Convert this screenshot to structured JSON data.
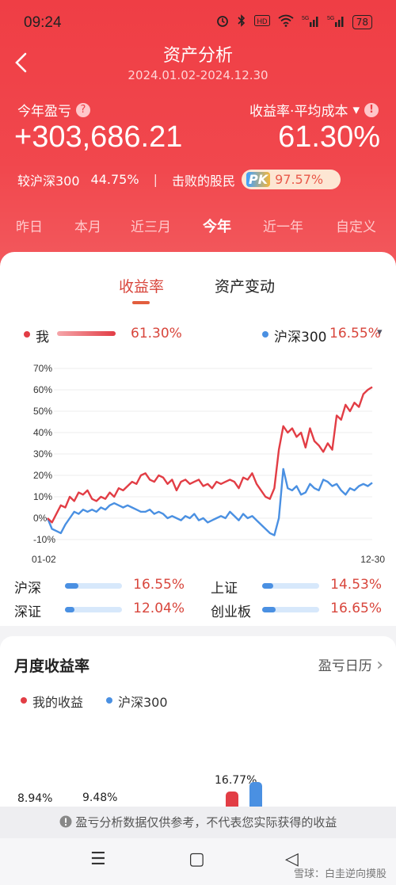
{
  "status_bar": {
    "time": "09:24",
    "battery": "78",
    "icons": [
      "alarm-icon",
      "bluetooth-icon",
      "hd-icon",
      "wifi-icon",
      "signal-5g-icon",
      "signal-5g-icon"
    ]
  },
  "header": {
    "title": "资产分析",
    "date_range": "2024.01.02-2024.12.30",
    "back_icon": "back-chevron-icon"
  },
  "summary": {
    "pl_label": "今年盈亏",
    "pl_help": "?",
    "pl_value": "+303,686.21",
    "rate_label": "收益率·平均成本",
    "rate_caret": "▾",
    "rate_info": "!",
    "rate_value": "61.30%",
    "vs_label": "较沪深300",
    "vs_value": "44.75%",
    "separator": "|",
    "beat_label": "击败的股民",
    "pk_badge": "PK",
    "beat_value": "97.57%"
  },
  "periods": [
    {
      "label": "昨日",
      "active": false
    },
    {
      "label": "本月",
      "active": false
    },
    {
      "label": "近三月",
      "active": false
    },
    {
      "label": "今年",
      "active": true
    },
    {
      "label": "近一年",
      "active": false
    },
    {
      "label": "自定义",
      "active": false
    }
  ],
  "tabs": [
    {
      "label": "收益率",
      "active": true
    },
    {
      "label": "资产变动",
      "active": false
    }
  ],
  "legend": {
    "mine_label": "我",
    "mine_value": "61.30%",
    "bench_label": "沪深300",
    "bench_value": "16.55%",
    "bench_caret": "▾"
  },
  "colors": {
    "mine": "#e23d45",
    "bench": "#4a90e2",
    "accent": "#d8463c",
    "hero": "#ef3e45"
  },
  "chart_data": {
    "type": "line",
    "x_start_label": "01-02",
    "x_end_label": "12-30",
    "y_ticks": [
      "70%",
      "60%",
      "50%",
      "40%",
      "30%",
      "20%",
      "10%",
      "0%",
      "-10%"
    ],
    "ylim": [
      -10,
      70
    ],
    "grid": true,
    "series": [
      {
        "name": "我",
        "values": [
          0,
          -2,
          2,
          6,
          5,
          10,
          8,
          12,
          11,
          13,
          9,
          8,
          10,
          9,
          12,
          10,
          14,
          13,
          15,
          17,
          16,
          20,
          21,
          18,
          17,
          20,
          19,
          16,
          18,
          13,
          17,
          18,
          16,
          17,
          18,
          15,
          16,
          14,
          17,
          16,
          17,
          18,
          17,
          14,
          19,
          18,
          21,
          16,
          13,
          10,
          9,
          14,
          32,
          43,
          40,
          42,
          38,
          40,
          33,
          42,
          36,
          34,
          31,
          35,
          32,
          48,
          46,
          53,
          50,
          54,
          52,
          58,
          60,
          61.3
        ]
      },
      {
        "name": "沪深300",
        "values": [
          0,
          -5,
          -6,
          -7,
          -3,
          0,
          3,
          2,
          4,
          3,
          4,
          3,
          5,
          4,
          6,
          7,
          6,
          5,
          6,
          5,
          4,
          3,
          3,
          4,
          2,
          3,
          2,
          0,
          1,
          0,
          -1,
          1,
          0,
          2,
          -1,
          0,
          -2,
          -1,
          0,
          1,
          0,
          3,
          1,
          -1,
          2,
          0,
          1,
          -1,
          -3,
          -5,
          -7,
          -8,
          0,
          23,
          14,
          13,
          15,
          11,
          12,
          16,
          14,
          13,
          18,
          17,
          15,
          16,
          13,
          11,
          14,
          13,
          15,
          16,
          15,
          16.55
        ]
      }
    ]
  },
  "indices": [
    {
      "name": "沪深",
      "value": "16.55%",
      "level": 0.24
    },
    {
      "name": "上证",
      "value": "14.53%",
      "level": 0.2
    },
    {
      "name": "深证",
      "value": "12.04%",
      "level": 0.16
    },
    {
      "name": "创业板",
      "value": "16.65%",
      "level": 0.24
    }
  ],
  "monthly": {
    "title": "月度收益率",
    "link_label": "盈亏日历",
    "link_chevron": "›",
    "legend_mine": "我的收益",
    "legend_bench": "沪深300",
    "bars": [
      {
        "label": "8.94%",
        "mine": 8.94,
        "bench": null
      },
      {
        "label": "9.48%",
        "mine": 9.48,
        "bench": null
      },
      {
        "label": "16.77%",
        "mine": 16.77,
        "bench": 21
      }
    ]
  },
  "disclaimer": {
    "icon": "info-icon",
    "text": "盈亏分析数据仅供参考，不代表您实际获得的收益"
  },
  "nav": {
    "menu_icon": "☰",
    "home_icon": "▢",
    "back_icon": "◁"
  },
  "watermark": "雪球：白圭逆向摸股"
}
